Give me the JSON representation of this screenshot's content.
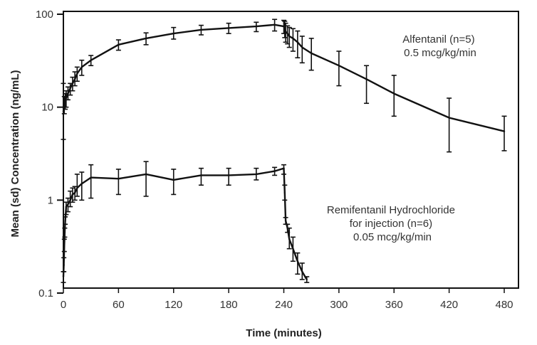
{
  "chart_data": {
    "type": "line",
    "title": "",
    "xlabel": "Time (minutes)",
    "ylabel": "Mean (sd) Concentration (ng/mL)",
    "xlim": [
      0,
      480
    ],
    "ylim": [
      0.1,
      100
    ],
    "yscale": "log",
    "grid": false,
    "xticks": [
      0,
      60,
      120,
      180,
      240,
      300,
      360,
      420,
      480
    ],
    "xtick_labels": [
      "0",
      "60",
      "120",
      "180",
      "240",
      "300",
      "360",
      "420",
      "480"
    ],
    "yticks": [
      0.1,
      1,
      10,
      100
    ],
    "ytick_labels": [
      "0.1",
      "1",
      "10",
      "100"
    ],
    "series": [
      {
        "name": "Alfentanil (n=5) 0.5 mcg/kg/min",
        "x": [
          0,
          1,
          2,
          3,
          5,
          7.5,
          10,
          12.5,
          15,
          20,
          30,
          60,
          90,
          120,
          150,
          180,
          210,
          230,
          240,
          241,
          242,
          244,
          246,
          250,
          255,
          260,
          270,
          300,
          330,
          360,
          420,
          480
        ],
        "y": [
          9,
          10.5,
          12,
          12.5,
          14,
          16,
          18,
          20,
          23,
          27,
          32,
          47,
          55,
          62,
          68,
          71,
          74,
          77,
          74,
          70,
          65,
          62,
          58,
          55,
          50,
          44,
          38,
          28,
          20,
          14,
          7.7,
          5.5
        ],
        "y_lo": [
          4.5,
          8.5,
          9.5,
          10,
          12,
          13.5,
          15,
          17,
          19,
          22,
          28,
          41,
          47,
          54,
          60,
          62,
          65,
          66,
          62,
          56,
          50,
          48,
          44,
          40,
          34,
          30,
          25,
          17,
          11,
          8,
          3.3,
          3.4
        ],
        "y_hi": [
          18,
          13,
          14,
          15,
          16.5,
          18,
          21,
          24,
          27,
          32,
          36,
          53,
          63,
          72,
          76,
          80,
          82,
          88,
          86,
          84,
          80,
          75,
          72,
          70,
          66,
          58,
          55,
          40,
          28,
          22,
          12.5,
          8
        ]
      },
      {
        "name": "Remifentanil Hydrochloride for injection (n=6) 0.05 mcg/kg/min",
        "x": [
          0,
          0.5,
          1,
          1.5,
          2,
          3,
          5,
          7.5,
          10,
          12.5,
          15,
          20,
          30,
          60,
          90,
          120,
          150,
          180,
          210,
          230,
          240,
          241,
          242,
          244,
          246,
          250,
          255,
          260,
          265
        ],
        "y": [
          0.15,
          0.2,
          0.33,
          0.45,
          0.6,
          0.85,
          0.9,
          1.0,
          1.15,
          1.2,
          1.35,
          1.5,
          1.75,
          1.7,
          1.9,
          1.65,
          1.85,
          1.85,
          1.9,
          2.05,
          2.2,
          1.2,
          0.6,
          0.5,
          0.38,
          0.3,
          0.22,
          0.17,
          0.14
        ],
        "y_lo": [
          0.13,
          0.17,
          0.28,
          0.4,
          0.55,
          0.7,
          0.75,
          0.85,
          0.95,
          1.0,
          1.1,
          1.0,
          1.05,
          1.15,
          1.1,
          1.15,
          1.45,
          1.45,
          1.65,
          1.85,
          1.9,
          1.0,
          0.55,
          0.45,
          0.3,
          0.22,
          0.16,
          0.14,
          0.13
        ],
        "y_hi": [
          0.17,
          0.24,
          0.38,
          0.5,
          0.66,
          0.95,
          1.05,
          1.25,
          1.35,
          1.4,
          1.9,
          2.0,
          2.4,
          2.15,
          2.6,
          2.15,
          2.2,
          2.2,
          2.2,
          2.25,
          2.4,
          1.45,
          0.65,
          0.55,
          0.5,
          0.4,
          0.27,
          0.21,
          0.15
        ]
      }
    ],
    "annotations": [
      {
        "lines": [
          "Alfentanil (n=5)",
          "0.5 mcg/kg/min"
        ],
        "series": 0
      },
      {
        "lines": [
          "Remifentanil Hydrochloride",
          "for injection (n=6)",
          "0.05 mcg/kg/min"
        ],
        "series": 1
      }
    ]
  }
}
